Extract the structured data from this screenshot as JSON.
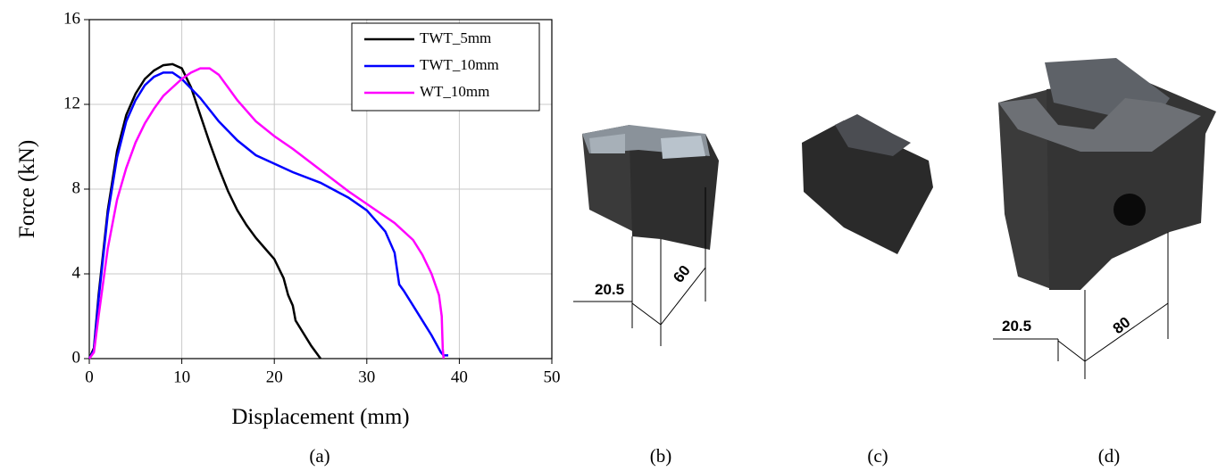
{
  "chart_data": {
    "type": "line",
    "x_label": "Displacement (mm)",
    "y_label": "Force (kN)",
    "xlim": [
      0,
      50
    ],
    "ylim": [
      0,
      16
    ],
    "xticks": [
      0,
      10,
      20,
      30,
      40,
      50
    ],
    "yticks": [
      0,
      4,
      8,
      12,
      16
    ],
    "grid": true,
    "legend": "upper right",
    "series": [
      {
        "name": "TWT_5mm",
        "color": "#000000",
        "x": [
          0,
          0.5,
          1,
          2,
          3,
          4,
          5,
          6,
          7,
          8,
          9,
          10,
          11,
          12,
          13,
          14,
          15,
          16,
          17,
          18,
          19,
          20,
          21,
          21.5,
          22,
          22.3,
          23,
          24,
          25
        ],
        "values": [
          0,
          0.5,
          3,
          7,
          9.8,
          11.5,
          12.5,
          13.2,
          13.6,
          13.85,
          13.9,
          13.7,
          12.8,
          11.5,
          10.2,
          9,
          7.9,
          7,
          6.3,
          5.7,
          5.2,
          4.7,
          3.8,
          3,
          2.5,
          1.8,
          1.3,
          0.6,
          0
        ]
      },
      {
        "name": "TWT_10mm",
        "color": "#0000ff",
        "x": [
          0,
          0.5,
          1,
          2,
          3,
          4,
          5,
          6,
          7,
          8,
          9,
          10,
          12,
          14,
          16,
          18,
          20,
          22,
          25,
          28,
          30,
          32,
          33,
          33.5,
          34,
          35,
          36,
          37,
          38,
          38.3,
          38.8
        ],
        "values": [
          0,
          0.4,
          2.8,
          6.8,
          9.5,
          11.2,
          12.2,
          12.9,
          13.3,
          13.5,
          13.5,
          13.2,
          12.3,
          11.2,
          10.3,
          9.6,
          9.2,
          8.8,
          8.3,
          7.6,
          7,
          6,
          5,
          3.5,
          3.2,
          2.5,
          1.8,
          1.1,
          0.3,
          0.15,
          0.15
        ]
      },
      {
        "name": "WT_10mm",
        "color": "#ff00ff",
        "x": [
          0,
          0.5,
          1,
          2,
          3,
          4,
          5,
          6,
          7,
          8,
          9,
          10,
          11,
          12,
          13,
          14,
          15,
          16,
          18,
          20,
          22,
          25,
          28,
          30,
          33,
          35,
          36,
          37,
          37.8,
          38.1,
          38.2,
          38.3
        ],
        "values": [
          0,
          0.3,
          2,
          5.2,
          7.5,
          9,
          10.2,
          11.1,
          11.8,
          12.4,
          12.8,
          13.2,
          13.5,
          13.7,
          13.7,
          13.4,
          12.8,
          12.2,
          11.2,
          10.5,
          9.9,
          8.9,
          7.9,
          7.3,
          6.4,
          5.6,
          4.9,
          4,
          3,
          2,
          0.5,
          0
        ]
      }
    ]
  },
  "panel_labels": [
    "(a)",
    "(b)",
    "(c)",
    "(d)"
  ],
  "dimension_labels": {
    "b": [
      "20.5",
      "60"
    ],
    "d": [
      "20.5",
      "80"
    ]
  }
}
